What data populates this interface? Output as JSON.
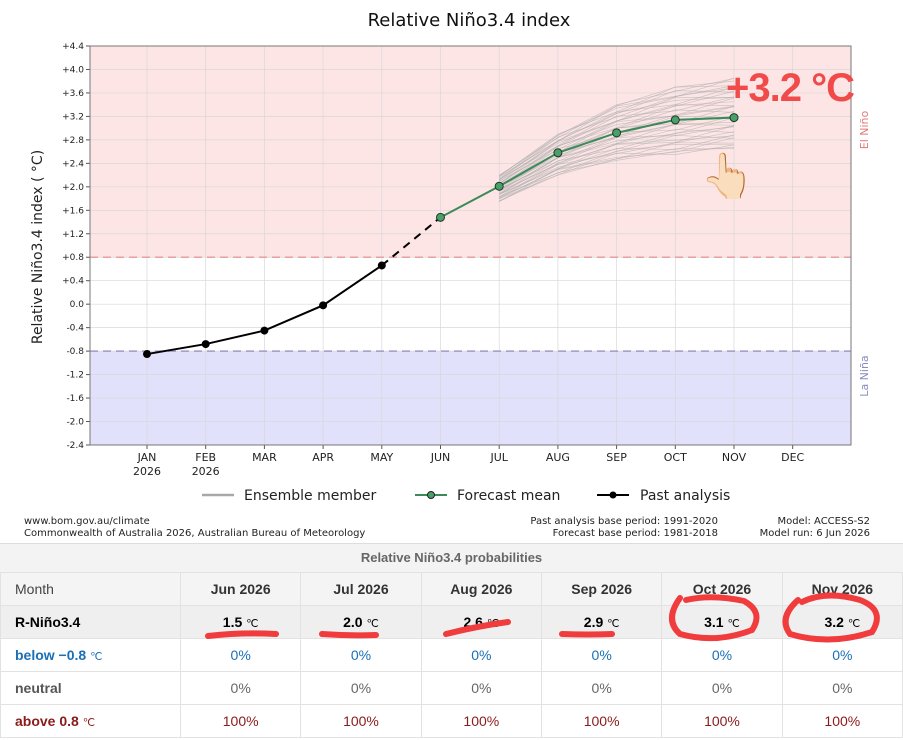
{
  "chart_data": {
    "type": "line",
    "title": "Relative Niño3.4 index",
    "ylabel": "Relative Niño3.4 index ( °C)",
    "ylim": [
      -2.4,
      4.4
    ],
    "yticks": [
      "+4.4",
      "+4.0",
      "+3.6",
      "+3.2",
      "+2.8",
      "+2.4",
      "+2.0",
      "+1.6",
      "+1.2",
      "+0.8",
      "+0.4",
      "0.0",
      "-0.4",
      "-0.8",
      "-1.2",
      "-1.6",
      "-2.0",
      "-2.4"
    ],
    "categories": [
      "JAN",
      "FEB",
      "MAR",
      "APR",
      "MAY",
      "JUN",
      "JUL",
      "AUG",
      "SEP",
      "OCT",
      "NOV",
      "DEC"
    ],
    "category_sub": [
      "2026",
      "2026",
      "",
      "",
      "",
      "",
      "",
      "",
      "",
      "",
      "",
      ""
    ],
    "thresholds": {
      "el_nino": 0.8,
      "la_nina": -0.8
    },
    "zone_labels": {
      "el_nino": "El Niño",
      "la_nina": "La Niña"
    },
    "series": [
      {
        "name": "Past analysis",
        "x": [
          "JAN",
          "FEB",
          "MAR",
          "APR",
          "MAY"
        ],
        "values": [
          -0.85,
          -0.68,
          -0.45,
          -0.02,
          0.66
        ]
      },
      {
        "name": "Forecast mean",
        "x": [
          "JUN",
          "JUL",
          "AUG",
          "SEP",
          "OCT",
          "NOV"
        ],
        "values": [
          1.48,
          2.01,
          2.58,
          2.92,
          3.14,
          3.18
        ]
      },
      {
        "name": "Ensemble member",
        "x": [
          "JUL",
          "AUG",
          "SEP",
          "OCT",
          "NOV"
        ],
        "min": [
          1.75,
          2.2,
          2.45,
          2.55,
          2.65
        ],
        "max": [
          2.2,
          2.9,
          3.4,
          3.7,
          3.85
        ]
      }
    ],
    "legend": [
      "Ensemble member",
      "Forecast mean",
      "Past analysis"
    ],
    "grid": true
  },
  "colors": {
    "el_nino_zone": "#fde5e5",
    "la_nina_zone": "#e1e1fb",
    "forecast": "#3a8a5a",
    "past": "#000000",
    "ensemble": "#a8a8a8",
    "annotation": "#f04a4a"
  },
  "footer": {
    "left_line1": "www.bom.gov.au/climate",
    "left_line2": "Commonwealth of Australia 2026, Australian Bureau of Meteorology",
    "mid_line1": "Past analysis base period: 1991-2020",
    "mid_line2": "Forecast base period: 1981-2018",
    "right_line1": "Model: ACCESS-S2",
    "right_line2": "Model run: 6 Jun 2026"
  },
  "annotation": {
    "text": "+3.2 °C",
    "icon": "pointing-up-hand-icon"
  },
  "table": {
    "title": "Relative Niño3.4 probabilities",
    "header_first": "Month",
    "months": [
      "Jun 2026",
      "Jul 2026",
      "Aug 2026",
      "Sep 2026",
      "Oct 2026",
      "Nov 2026"
    ],
    "unit": "℃",
    "rows": [
      {
        "label": "R-Niño3.4",
        "unit_label": "",
        "values": [
          "1.5",
          "2.0",
          "2.6",
          "2.9",
          "3.1",
          "3.2"
        ]
      },
      {
        "label": "below −0.8",
        "unit_label": "℃",
        "values": [
          "0%",
          "0%",
          "0%",
          "0%",
          "0%",
          "0%"
        ]
      },
      {
        "label": "neutral",
        "unit_label": "",
        "values": [
          "0%",
          "0%",
          "0%",
          "0%",
          "0%",
          "0%"
        ]
      },
      {
        "label": "above 0.8",
        "unit_label": "℃",
        "values": [
          "100%",
          "100%",
          "100%",
          "100%",
          "100%",
          "100%"
        ]
      }
    ]
  }
}
